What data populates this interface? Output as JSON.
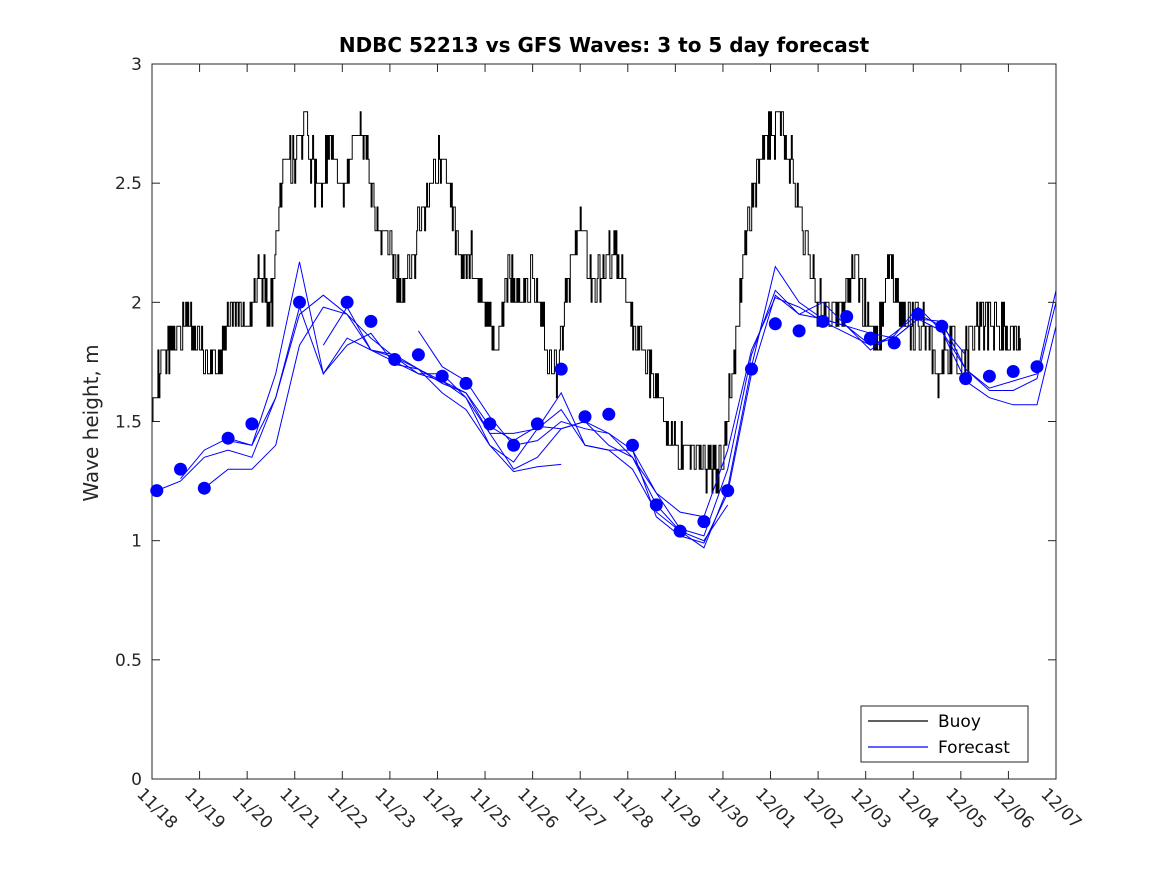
{
  "chart_data": {
    "type": "line",
    "title": "NDBC 52213 vs GFS Waves: 3 to 5 day forecast",
    "xlabel": "",
    "ylabel": "Wave height, m",
    "xlim": [
      0,
      19
    ],
    "ylim": [
      0,
      3
    ],
    "yticks": [
      0,
      0.5,
      1,
      1.5,
      2,
      2.5,
      3
    ],
    "ytick_labels": [
      "0",
      "0.5",
      "1",
      "1.5",
      "2",
      "2.5",
      "3"
    ],
    "xtick_labels": [
      "11/18",
      "11/19",
      "11/20",
      "11/21",
      "11/22",
      "11/23",
      "11/24",
      "11/25",
      "11/26",
      "11/27",
      "11/28",
      "11/29",
      "11/30",
      "12/01",
      "12/02",
      "12/03",
      "12/04",
      "12/05",
      "12/06",
      "12/07"
    ],
    "x_units": "days since 11/18",
    "colors": {
      "buoy": "#000000",
      "forecast": "#0000ff"
    },
    "legend": {
      "position": "bottom-right",
      "entries": [
        "Buoy",
        "Forecast"
      ]
    },
    "buoy": {
      "name": "Buoy",
      "x": [
        0,
        0.25,
        0.5,
        0.75,
        1.0,
        1.25,
        1.5,
        1.75,
        2.0,
        2.25,
        2.5,
        2.75,
        3.0,
        3.25,
        3.5,
        3.75,
        4.0,
        4.25,
        4.5,
        4.75,
        5.0,
        5.25,
        5.5,
        5.75,
        6.0,
        6.25,
        6.5,
        6.75,
        7.0,
        7.25,
        7.5,
        7.75,
        8.0,
        8.25,
        8.5,
        8.75,
        9.0,
        9.25,
        9.5,
        9.75,
        10.0,
        10.25,
        10.5,
        10.75,
        11.0,
        11.25,
        11.5,
        11.75,
        12.0,
        12.25,
        12.5,
        12.75,
        13.0,
        13.25,
        13.5,
        13.75,
        14.0,
        14.25,
        14.5,
        14.75,
        15.0,
        15.25,
        15.5,
        15.75,
        16.0,
        16.25,
        16.5,
        16.75,
        17.0,
        17.25,
        17.5,
        17.75,
        18.0,
        18.25
      ],
      "y": [
        1.65,
        1.75,
        1.9,
        1.95,
        1.8,
        1.75,
        1.8,
        2.0,
        1.9,
        2.1,
        2.0,
        2.55,
        2.6,
        2.75,
        2.4,
        2.7,
        2.4,
        2.75,
        2.6,
        2.3,
        2.2,
        2.0,
        2.2,
        2.45,
        2.6,
        2.5,
        2.1,
        2.2,
        1.95,
        1.8,
        2.15,
        2.0,
        2.1,
        1.85,
        1.7,
        2.1,
        2.35,
        2.0,
        2.15,
        2.2,
        2.0,
        1.8,
        1.7,
        1.55,
        1.4,
        1.35,
        1.35,
        1.3,
        1.35,
        1.8,
        2.3,
        2.55,
        2.7,
        2.75,
        2.5,
        2.2,
        2.0,
        1.95,
        1.95,
        2.2,
        1.95,
        1.85,
        2.15,
        1.95,
        1.9,
        1.9,
        1.7,
        1.8,
        1.75,
        1.85,
        1.95,
        1.9,
        1.85,
        1.85
      ]
    },
    "forecast_markers": {
      "name": "Forecast",
      "x": [
        0.1,
        0.6,
        1.1,
        1.6,
        2.1,
        3.1,
        4.1,
        4.6,
        5.1,
        5.6,
        6.1,
        6.6,
        7.1,
        7.6,
        8.1,
        8.6,
        9.1,
        9.6,
        10.1,
        10.6,
        11.1,
        11.6,
        12.1,
        12.6,
        13.1,
        13.6,
        14.1,
        14.6,
        15.1,
        15.6,
        16.1,
        16.6,
        17.1,
        17.6,
        18.1,
        18.6
      ],
      "y": [
        1.21,
        1.3,
        1.22,
        1.43,
        1.49,
        2.0,
        2.0,
        1.92,
        1.76,
        1.78,
        1.69,
        1.66,
        1.49,
        1.4,
        1.49,
        1.72,
        1.52,
        1.53,
        1.4,
        1.15,
        1.04,
        1.08,
        1.21,
        1.72,
        1.91,
        1.88,
        1.92,
        1.94,
        1.85,
        1.83,
        1.95,
        1.9,
        1.68,
        1.69,
        1.71,
        1.73
      ]
    },
    "forecast_runs": [
      {
        "x": [
          0.1,
          0.6,
          1.1,
          1.6,
          2.1,
          2.6,
          3.1,
          3.6,
          4.1,
          4.6,
          5.1,
          5.6,
          6.1,
          6.6,
          7.1,
          7.6,
          8.1,
          8.6
        ],
        "y": [
          1.21,
          1.25,
          1.35,
          1.38,
          1.35,
          1.6,
          1.98,
          1.7,
          1.82,
          1.87,
          1.74,
          1.72,
          1.62,
          1.55,
          1.4,
          1.29,
          1.31,
          1.32
        ]
      },
      {
        "x": [
          0.6,
          1.1,
          1.6,
          2.1,
          2.6,
          3.1,
          3.6,
          4.1,
          4.6,
          5.1,
          5.6,
          6.1,
          6.6,
          7.1,
          7.6,
          8.1,
          8.6,
          9.1,
          9.6,
          10.1,
          10.6,
          11.1,
          11.6,
          12.1
        ],
        "y": [
          1.26,
          1.38,
          1.43,
          1.4,
          1.6,
          1.95,
          2.03,
          1.95,
          1.8,
          1.78,
          1.72,
          1.67,
          1.6,
          1.45,
          1.3,
          1.35,
          1.47,
          1.5,
          1.4,
          1.35,
          1.15,
          1.04,
          1.0,
          1.15
        ]
      },
      {
        "x": [
          1.1,
          1.6,
          2.1,
          2.6,
          3.1,
          3.6,
          4.1,
          4.6,
          5.1,
          5.6,
          6.1,
          6.6,
          7.1,
          7.6,
          8.1,
          8.6,
          9.1,
          9.6,
          10.1,
          10.6,
          11.1,
          11.6,
          12.1,
          12.6,
          13.1,
          13.6,
          14.1,
          14.6,
          15.1,
          15.6,
          16.1,
          16.6,
          17.1,
          17.6,
          18.1,
          18.6,
          19.0
        ],
        "y": [
          1.22,
          1.3,
          1.3,
          1.4,
          1.82,
          1.98,
          1.95,
          1.85,
          1.77,
          1.72,
          1.66,
          1.62,
          1.48,
          1.42,
          1.48,
          1.47,
          1.5,
          1.45,
          1.38,
          1.1,
          1.02,
          0.99,
          1.2,
          1.7,
          2.03,
          1.95,
          1.93,
          1.9,
          1.87,
          1.85,
          1.93,
          1.92,
          1.72,
          1.63,
          1.63,
          1.68,
          2.0
        ]
      },
      {
        "x": [
          1.6,
          2.1,
          2.6,
          3.1,
          3.6,
          4.1,
          4.6,
          5.1,
          5.6,
          6.1,
          6.6,
          7.1,
          7.6,
          8.1,
          8.6,
          9.1,
          9.6,
          10.1,
          10.6,
          11.1,
          11.6,
          12.1,
          12.6,
          13.1,
          13.6,
          14.1,
          14.6,
          15.1,
          15.6,
          16.1,
          16.6,
          17.1,
          17.6,
          18.1,
          18.6,
          19.0
        ],
        "y": [
          1.42,
          1.4,
          1.7,
          2.17,
          1.7,
          1.85,
          1.8,
          1.75,
          1.7,
          1.7,
          1.6,
          1.4,
          1.33,
          1.47,
          1.55,
          1.4,
          1.38,
          1.3,
          1.12,
          1.04,
          0.97,
          1.22,
          1.73,
          2.15,
          2.0,
          1.93,
          1.9,
          1.82,
          1.86,
          1.98,
          1.88,
          1.67,
          1.6,
          1.57,
          1.57,
          1.9
        ]
      },
      {
        "x": [
          3.6,
          4.1,
          4.6,
          5.1,
          5.6,
          6.1,
          6.6,
          7.1,
          7.6,
          8.1,
          8.6,
          9.1,
          9.6,
          10.1,
          10.6,
          11.1,
          11.6,
          12.1,
          12.6,
          13.1,
          13.6,
          14.1,
          14.6,
          15.1,
          15.6,
          16.1,
          16.6,
          17.1
        ],
        "y": [
          1.82,
          1.98,
          1.8,
          1.77,
          1.7,
          1.67,
          1.62,
          1.45,
          1.45,
          1.47,
          1.62,
          1.4,
          1.38,
          1.38,
          1.2,
          1.05,
          1.02,
          1.3,
          1.78,
          2.05,
          1.95,
          2.0,
          1.9,
          1.8,
          1.87,
          1.95,
          1.9,
          1.78
        ]
      },
      {
        "x": [
          5.6,
          6.1,
          6.6,
          7.1,
          7.6,
          8.1,
          8.6,
          9.1,
          9.6,
          10.1,
          10.6,
          11.1,
          11.6,
          12.1,
          12.6,
          13.1,
          13.6,
          14.1,
          14.6,
          15.1,
          15.6,
          16.1,
          16.6,
          17.1,
          17.6,
          18.1,
          18.6,
          19.0
        ],
        "y": [
          1.88,
          1.73,
          1.67,
          1.52,
          1.4,
          1.42,
          1.5,
          1.47,
          1.45,
          1.35,
          1.2,
          1.12,
          1.1,
          1.38,
          1.8,
          2.02,
          1.98,
          1.92,
          1.87,
          1.82,
          1.85,
          1.93,
          1.88,
          1.72,
          1.64,
          1.67,
          1.7,
          2.05
        ]
      }
    ]
  }
}
